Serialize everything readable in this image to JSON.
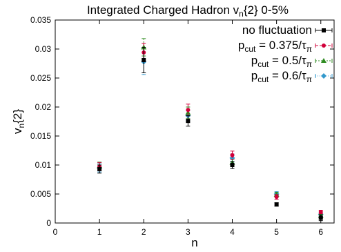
{
  "chart_data": {
    "type": "scatter",
    "title": "Integrated Charged Hadron v",
    "title_sub": "n",
    "title_rest": "{2} 0-5%",
    "xlabel": "n",
    "ylabel": "v",
    "ylabel_sub": "n",
    "ylabel_rest": "{2}",
    "xlim": [
      0,
      6.3
    ],
    "ylim": [
      0,
      0.035
    ],
    "xticks": [
      "0",
      "1",
      "2",
      "3",
      "4",
      "5",
      "6"
    ],
    "yticks": [
      "0",
      "0.005",
      "0.01",
      "0.015",
      "0.02",
      "0.025",
      "0.03",
      "0.035"
    ],
    "grid": false,
    "legend_position": "top-right",
    "series": [
      {
        "name": "no fluctuation",
        "legend_lines": [
          "no fluctuation"
        ],
        "color": "#000000",
        "marker": "square",
        "dash": "",
        "x": [
          1,
          2,
          3,
          4,
          5,
          6
        ],
        "y": [
          0.0093,
          0.0281,
          0.0176,
          0.01,
          0.0032,
          0.0009
        ],
        "err": [
          0.0007,
          0.0022,
          0.0009,
          0.0006,
          0.0003,
          0.0005
        ]
      },
      {
        "name": "p_cut = 0.375/τ_π",
        "legend_lines": [
          "p",
          "cut",
          " = 0.375/τ",
          "π"
        ],
        "color": "#d1003a",
        "marker": "circle",
        "dash": "4,2",
        "x": [
          1,
          2,
          3,
          4,
          5,
          6
        ],
        "y": [
          0.0097,
          0.0294,
          0.0195,
          0.0117,
          0.0045,
          0.0019
        ],
        "err": [
          0.0007,
          0.0016,
          0.001,
          0.0007,
          0.0004,
          0.0003
        ]
      },
      {
        "name": "p_cut = 0.5/τ_π",
        "legend_lines": [
          "p",
          "cut",
          " = 0.5/τ",
          "π"
        ],
        "color": "#2e8b20",
        "marker": "triangle",
        "dash": "2,2",
        "x": [
          1,
          2,
          3,
          4,
          5,
          6
        ],
        "y": [
          0.0098,
          0.0303,
          0.019,
          0.0104,
          0.0049,
          0.0012
        ],
        "err": [
          0.0007,
          0.0015,
          0.001,
          0.0006,
          0.0004,
          0.0003
        ]
      },
      {
        "name": "p_cut = 0.6/τ_π",
        "legend_lines": [
          "p",
          "cut",
          " = 0.6/τ",
          "π"
        ],
        "color": "#3399cc",
        "marker": "diamond",
        "dash": "1,2",
        "x": [
          1,
          2,
          3,
          4,
          5,
          6
        ],
        "y": [
          0.0095,
          0.0278,
          0.0185,
          0.0112,
          0.005,
          0.0015
        ],
        "err": [
          0.0007,
          0.0022,
          0.0009,
          0.0007,
          0.0004,
          0.0003
        ]
      }
    ]
  }
}
